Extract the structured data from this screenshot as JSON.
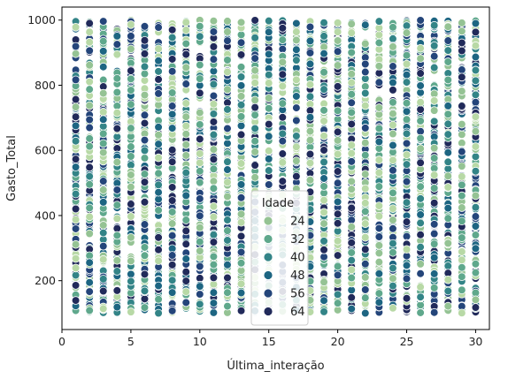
{
  "chart_data": {
    "type": "scatter",
    "xlabel": "Última_interação",
    "ylabel": "Gasto_Total",
    "xlim": [
      0,
      31
    ],
    "ylim": [
      50,
      1040
    ],
    "xticks": [
      0,
      5,
      10,
      15,
      20,
      25,
      30
    ],
    "yticks": [
      200,
      400,
      600,
      800,
      1000
    ],
    "x_values": [
      1,
      2,
      3,
      4,
      5,
      6,
      7,
      8,
      9,
      10,
      11,
      12,
      13,
      14,
      15,
      16,
      17,
      18,
      19,
      20,
      21,
      22,
      23,
      24,
      25,
      26,
      27,
      28,
      29,
      30
    ],
    "y_range": [
      100,
      1000
    ],
    "hue_variable": "Idade",
    "hue_range": [
      18,
      70
    ],
    "grid": false,
    "legend": {
      "title": "Idade",
      "placement": "lower-center",
      "entries": [
        {
          "label": "24",
          "color": "#95c394"
        },
        {
          "label": "32",
          "color": "#5fa88c"
        },
        {
          "label": "40",
          "color": "#338487"
        },
        {
          "label": "48",
          "color": "#1d6582"
        },
        {
          "label": "56",
          "color": "#24457a"
        },
        {
          "label": "64",
          "color": "#212a5a"
        }
      ]
    },
    "palette": [
      "#b8d9a6",
      "#95c394",
      "#5fa88c",
      "#338487",
      "#1d6582",
      "#24457a",
      "#212a5a"
    ]
  }
}
